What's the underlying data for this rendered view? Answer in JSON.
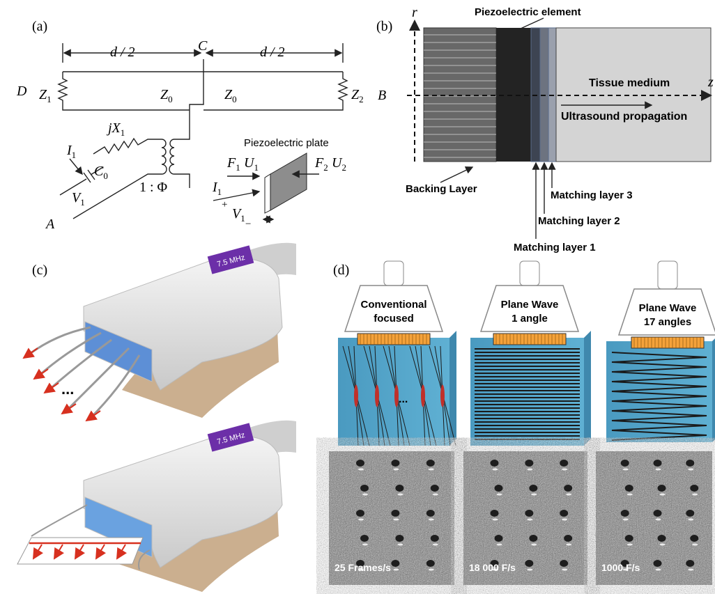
{
  "panel_a": {
    "label": "(a)",
    "half_length": [
      "d / 2",
      "d / 2"
    ],
    "node_labels": [
      "C",
      "D",
      "A"
    ],
    "symbols": [
      {
        "main": "Z",
        "sub": "1"
      },
      {
        "main": "Z",
        "sub": "0"
      },
      {
        "main": "Z",
        "sub": "0"
      },
      {
        "main": "Z",
        "sub": "2"
      },
      {
        "main": "jX",
        "sub": "1"
      },
      {
        "main": "I",
        "sub": "1"
      },
      {
        "main": "C",
        "sub": "0"
      },
      {
        "main": "V",
        "sub": "1"
      },
      {
        "main": "F",
        "sub": "1"
      },
      {
        "main": "U",
        "sub": "1"
      },
      {
        "main": "F",
        "sub": "2"
      },
      {
        "main": "U",
        "sub": "2"
      },
      {
        "main": "I",
        "sub": "1"
      },
      {
        "main": "V",
        "sub": "1"
      }
    ],
    "ratio": "1 : Φ",
    "plate_title": "Piezoelectric plate",
    "plus": "+",
    "minus": "−"
  },
  "panel_b": {
    "label": "(b)",
    "element_title": "Piezoelectric element",
    "axis_r": "r",
    "axis_z": "z",
    "port_label": "B",
    "tissue": "Tissue medium",
    "propagation": "Ultrasound propagation",
    "backing": "Backing Layer",
    "matching": [
      "Matching layer 3",
      "Matching layer 2",
      "Matching layer 1"
    ]
  },
  "panel_c": {
    "label": "(c)",
    "probe_labels": [
      "7.5 MHz",
      "7.5 MHz"
    ],
    "ellipsis": "..."
  },
  "panel_d": {
    "label": "(d)",
    "modes": [
      {
        "line1": "Conventional",
        "line2": "focused"
      },
      {
        "line1": "Plane Wave",
        "line2": "1 angle"
      },
      {
        "line1": "Plane Wave",
        "line2": "17 angles"
      }
    ],
    "ellipsis": "...",
    "frame_rates": [
      "25 Frames/s",
      "18 000 F/s",
      "1000 F/s"
    ]
  }
}
